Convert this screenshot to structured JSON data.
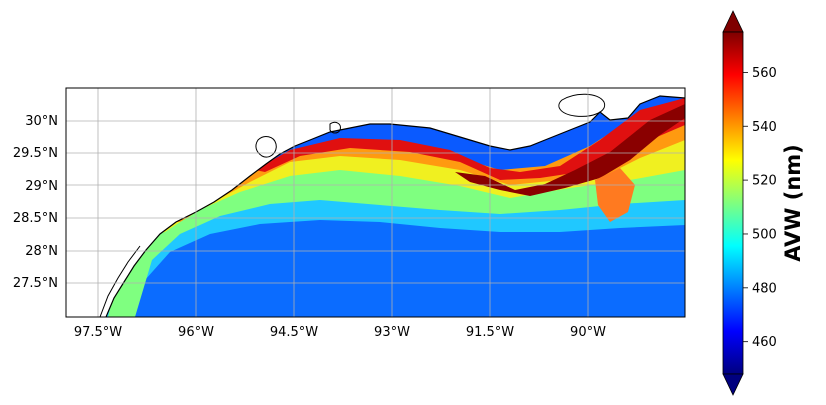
{
  "map": {
    "x_ticks": [
      "97.5°W",
      "96°W",
      "94.5°W",
      "93°W",
      "91.5°W",
      "90°W"
    ],
    "x_tick_values": [
      -97.5,
      -96.0,
      -94.5,
      -93.0,
      -91.5,
      -90.0
    ],
    "y_ticks": [
      "30°N",
      "29.5°N",
      "29°N",
      "28.5°N",
      "28°N",
      "27.5°N"
    ],
    "y_tick_values": [
      30.0,
      29.5,
      29.0,
      28.5,
      28.0,
      27.5
    ],
    "lon_range": [
      -98.0,
      -88.5
    ],
    "lat_range": [
      27.0,
      30.5
    ],
    "grid": true,
    "colors": {
      "land": "#ffffff",
      "coastline": "#000000",
      "grid": "#b0b0b0"
    }
  },
  "colorbar": {
    "label": "AVW (nm)",
    "ticks": [
      "460",
      "480",
      "500",
      "520",
      "540",
      "560"
    ],
    "tick_values": [
      460,
      480,
      500,
      520,
      540,
      560
    ],
    "range": [
      448,
      575
    ],
    "colormap": "jet",
    "extend": "both",
    "colors": [
      "#00007f",
      "#0000ff",
      "#007fff",
      "#00ffff",
      "#7fff7f",
      "#ffff00",
      "#ff7f00",
      "#ff0000",
      "#7f0000"
    ]
  }
}
